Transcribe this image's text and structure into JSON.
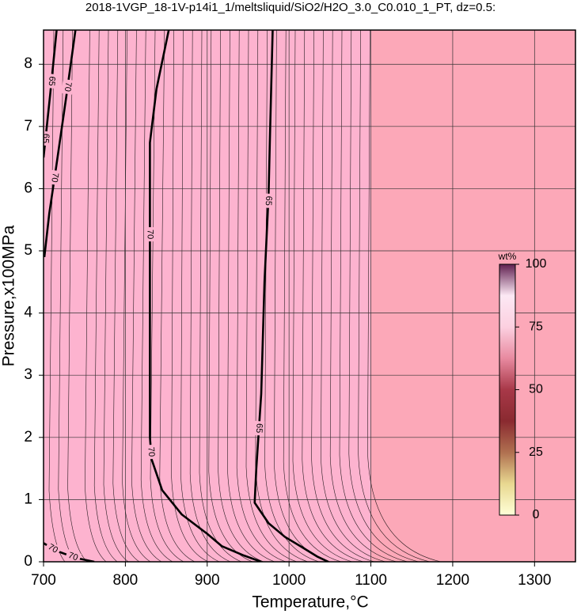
{
  "chart_data": {
    "type": "contour",
    "title": "2018-1VGP_18-1V-p14i1_1/meltsliquid/SiO2/H2O_3.0_C0.010_1_PT, dz=0.5:",
    "x_label": "Temperature,°C",
    "y_label": "Pressure,x100MPa",
    "xlim": [
      700,
      1350
    ],
    "ylim": [
      0,
      8.55
    ],
    "xticks": [
      700,
      800,
      900,
      1000,
      1100,
      1200,
      1300
    ],
    "yticks": [
      0,
      1,
      2,
      3,
      4,
      5,
      6,
      7,
      8
    ],
    "grid": true,
    "fill_colors": [
      "#fdb3cf",
      "#fca8b8"
    ],
    "contours": [
      {
        "level": 70,
        "x": [
          853,
          838,
          830,
          830,
          830,
          830,
          832,
          845,
          869,
          900,
          918,
          945,
          966
        ],
        "y": [
          8.55,
          7.6,
          6.74,
          5,
          3,
          2,
          1.65,
          1.15,
          0.76,
          0.45,
          0.25,
          0.1,
          0
        ]
      },
      {
        "level": 65,
        "x": [
          980,
          977,
          975,
          970,
          966,
          960,
          958,
          975,
          995,
          1014,
          1035,
          1048
        ],
        "y": [
          8.55,
          7,
          5.9,
          4.5,
          2.7,
          1.5,
          0.95,
          0.62,
          0.4,
          0.25,
          0.08,
          0
        ]
      },
      {
        "level": 65,
        "x": [
          716,
          708,
          700
        ],
        "y": [
          8.55,
          7.5,
          6.5
        ]
      },
      {
        "level": 70,
        "x": [
          739,
          728,
          716,
          707,
          701
        ],
        "y": [
          8.55,
          7.5,
          6.4,
          5.6,
          4.9
        ]
      },
      {
        "level": 70,
        "x": [
          700,
          715,
          740,
          762
        ],
        "y": [
          0.3,
          0.18,
          0.06,
          0
        ]
      }
    ],
    "colorbar": {
      "label": "wt%",
      "lim": [
        0,
        100
      ],
      "ticks": [
        0,
        25,
        50,
        75,
        100
      ],
      "colors": [
        "#ffffd8",
        "#e8d890",
        "#b07050",
        "#8a2a30",
        "#a83848",
        "#e88aa0",
        "#fcd0e0",
        "#fce8f4",
        "#602050"
      ]
    }
  }
}
